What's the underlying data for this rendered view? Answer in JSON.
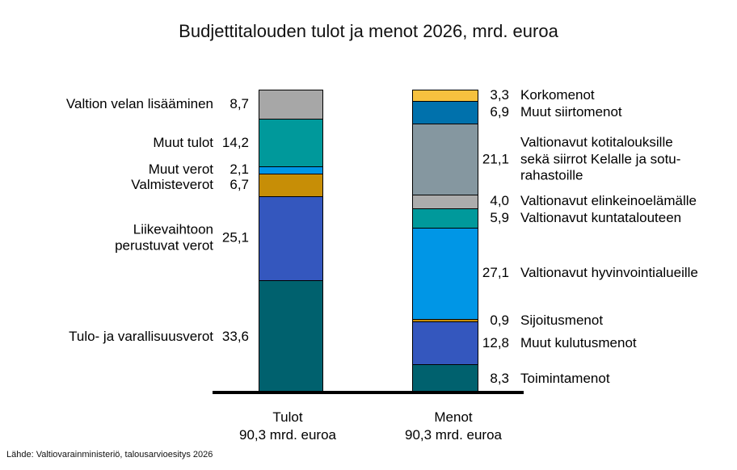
{
  "title": "Budjettitalouden tulot ja menot 2026, mrd. euroa",
  "source": "Lähde: Valtiovarainministeriö, talousarvioesitys 2026",
  "chart_data": {
    "type": "bar",
    "subtype": "stacked-columns",
    "unit": "mrd. euroa",
    "grid": false,
    "legend": "none (direct segment labels)",
    "columns": [
      {
        "id": "tulot",
        "axis_label": "Tulot",
        "axis_sublabel": "90,3 mrd. euroa",
        "total": 90.3,
        "labels_side": "left",
        "segments_top_to_bottom": [
          {
            "label": "Valtion velan lisääminen",
            "value": 8.7,
            "value_text": "8,7",
            "color": "#A7A7A7"
          },
          {
            "label": "Muut tulot",
            "value": 14.2,
            "value_text": "14,2",
            "color": "#00999B"
          },
          {
            "label": "Muut verot",
            "value": 2.1,
            "value_text": "2,1",
            "color": "#0096E6"
          },
          {
            "label": "Valmisteverot",
            "value": 6.7,
            "value_text": "6,7",
            "color": "#C78E06"
          },
          {
            "label": "Liikevaihtoon\nperustuvat verot",
            "value": 25.1,
            "value_text": "25,1",
            "color": "#3457BE"
          },
          {
            "label": "Tulo- ja varallisuusverot",
            "value": 33.6,
            "value_text": "33,6",
            "color": "#00616E"
          }
        ]
      },
      {
        "id": "menot",
        "axis_label": "Menot",
        "axis_sublabel": "90,3 mrd. euroa",
        "total": 90.3,
        "labels_side": "right",
        "segments_top_to_bottom": [
          {
            "label": "Korkomenot",
            "value": 3.3,
            "value_text": "3,3",
            "color": "#F6C13F"
          },
          {
            "label": "Muut siirtomenot",
            "value": 6.9,
            "value_text": "6,9",
            "color": "#0071AC"
          },
          {
            "label": "Valtionavut kotitalouksille\nsekä siirrot Kelalle ja sotu-\nrahastoille",
            "value": 21.1,
            "value_text": "21,1",
            "color": "#8597A0"
          },
          {
            "label": "Valtionavut  elinkeinoelämälle",
            "value": 4.0,
            "value_text": "4,0",
            "color": "#ACACAC"
          },
          {
            "label": "Valtionavut kuntatalouteen",
            "value": 5.9,
            "value_text": "5,9",
            "color": "#00999B"
          },
          {
            "label": "Valtionavut hyvinvointialueille",
            "value": 27.1,
            "value_text": "27,1",
            "color": "#0096E6"
          },
          {
            "label": "Sijoitusmenot",
            "value": 0.9,
            "value_text": "0,9",
            "color": "#C78E06"
          },
          {
            "label": "Muut kulutusmenot",
            "value": 12.8,
            "value_text": "12,8",
            "color": "#3457BE"
          },
          {
            "label": "Toimintamenot",
            "value": 8.3,
            "value_text": "8,3",
            "color": "#00616E"
          }
        ]
      }
    ]
  }
}
